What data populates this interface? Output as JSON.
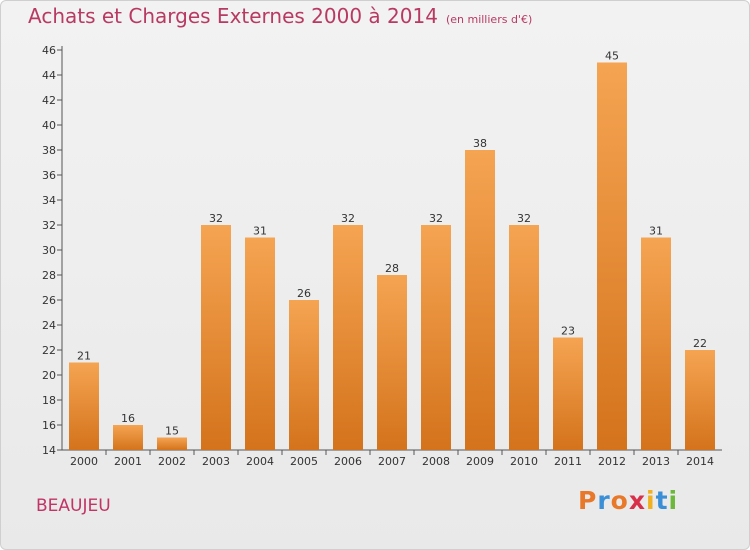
{
  "chart_data": {
    "type": "bar",
    "title": "Achats et Charges Externes 2000 à 2014",
    "subtitle": "(en milliers d'€)",
    "categories": [
      "2000",
      "2001",
      "2002",
      "2003",
      "2004",
      "2005",
      "2006",
      "2007",
      "2008",
      "2009",
      "2010",
      "2011",
      "2012",
      "2013",
      "2014"
    ],
    "values": [
      21,
      16,
      15,
      32,
      31,
      26,
      32,
      28,
      32,
      38,
      32,
      23,
      45,
      31,
      22
    ],
    "ylim": [
      14,
      46
    ],
    "yticks": [
      14,
      16,
      18,
      20,
      22,
      24,
      26,
      28,
      30,
      32,
      34,
      36,
      38,
      40,
      42,
      44,
      46
    ],
    "grid": false,
    "colors": {
      "bar_light": "#f5a452",
      "bar_dark": "#d4731c",
      "title": "#b83a62"
    }
  },
  "commune": "BEAUJEU",
  "logo": {
    "letters": [
      "P",
      "r",
      "o",
      "x",
      "i",
      "t",
      "i"
    ],
    "colors": [
      "#e8782a",
      "#3b8fd6",
      "#e8782a",
      "#d8304a",
      "#f0b020",
      "#3b8fd6",
      "#6cb83a"
    ]
  }
}
